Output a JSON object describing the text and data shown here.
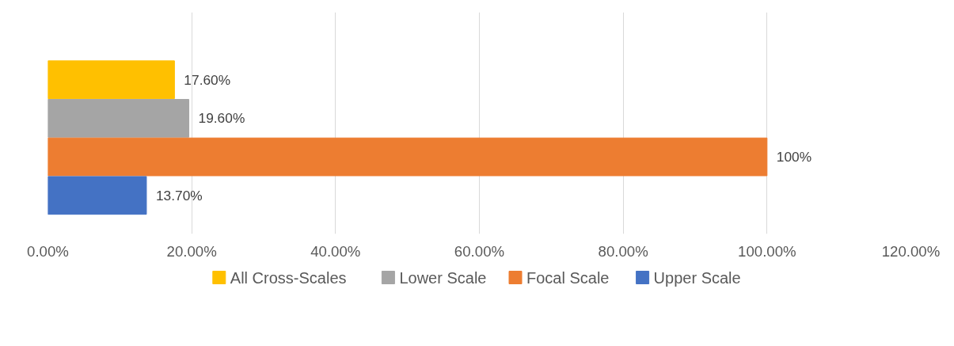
{
  "chart_data": {
    "type": "bar",
    "orientation": "horizontal",
    "categories": [
      null
    ],
    "series": [
      {
        "name": "All Cross-Scales",
        "color": "#ffc000",
        "values": [
          17.6
        ],
        "value_labels": [
          "17.60%"
        ]
      },
      {
        "name": "Lower Scale",
        "color": "#a5a5a5",
        "values": [
          19.6
        ],
        "value_labels": [
          "19.60%"
        ]
      },
      {
        "name": "Focal Scale",
        "color": "#ed7d31",
        "values": [
          100
        ],
        "value_labels": [
          "100%"
        ]
      },
      {
        "name": "Upper Scale",
        "color": "#4472c4",
        "values": [
          13.7
        ],
        "value_labels": [
          "13.70%"
        ]
      }
    ],
    "xlim": [
      0,
      120
    ],
    "xticks": [
      {
        "value": 0,
        "label": "0.00%"
      },
      {
        "value": 20,
        "label": "20.00%"
      },
      {
        "value": 40,
        "label": "40.00%"
      },
      {
        "value": 60,
        "label": "60.00%"
      },
      {
        "value": 80,
        "label": "80.00%"
      },
      {
        "value": 100,
        "label": "100.00%"
      },
      {
        "value": 120,
        "label": "120.00%"
      }
    ],
    "grid": "x",
    "legend": "bottom",
    "tick_labels": "x"
  }
}
